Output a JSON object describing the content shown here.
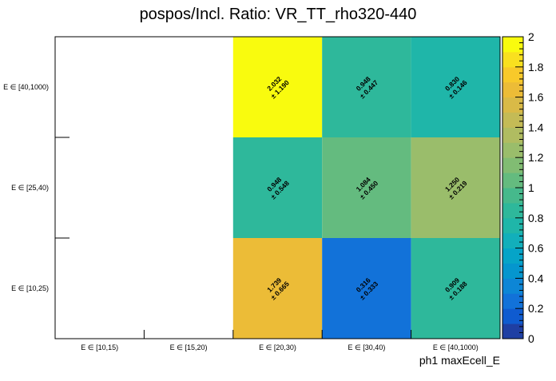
{
  "chart_data": {
    "type": "heatmap",
    "title": "pospos/Incl. Ratio: VR_TT_rho320-440",
    "xlabel": "ph1 maxEcell_E",
    "ylabel": "",
    "x_categories": [
      "E ∈ [10,15)",
      "E ∈ [15,20)",
      "E ∈ [20,30)",
      "E ∈ [30,40)",
      "E ∈ [40,1000)"
    ],
    "y_categories": [
      "E ∈ [10,25)",
      "E ∈ [25,40)",
      "E ∈ [40,1000)"
    ],
    "cells": [
      {
        "x": "E ∈ [20,30)",
        "y": "E ∈ [40,1000)",
        "value": "2.032",
        "error": "1.190",
        "label": "± 1.190"
      },
      {
        "x": "E ∈ [30,40)",
        "y": "E ∈ [40,1000)",
        "value": "0.948",
        "error": "0.447",
        "label": "± 0.447"
      },
      {
        "x": "E ∈ [40,1000)",
        "y": "E ∈ [40,1000)",
        "value": "0.830",
        "error": "0.146",
        "label": "± 0.146"
      },
      {
        "x": "E ∈ [20,30)",
        "y": "E ∈ [25,40)",
        "value": "0.948",
        "error": "0.548",
        "label": "± 0.548"
      },
      {
        "x": "E ∈ [30,40)",
        "y": "E ∈ [25,40)",
        "value": "1.084",
        "error": "0.450",
        "label": "± 0.450"
      },
      {
        "x": "E ∈ [40,1000)",
        "y": "E ∈ [25,40)",
        "value": "1.250",
        "error": "0.219",
        "label": "± 0.219"
      },
      {
        "x": "E ∈ [20,30)",
        "y": "E ∈ [10,25)",
        "value": "1.739",
        "error": "0.665",
        "label": "± 0.665"
      },
      {
        "x": "E ∈ [30,40)",
        "y": "E ∈ [10,25)",
        "value": "0.316",
        "error": "0.333",
        "label": "± 0.333"
      },
      {
        "x": "E ∈ [40,1000)",
        "y": "E ∈ [10,25)",
        "value": "0.909",
        "error": "0.188",
        "label": "± 0.188"
      }
    ],
    "zlim": [
      0,
      2
    ],
    "colorbar_ticks": [
      "0",
      "0.2",
      "0.4",
      "0.6",
      "0.8",
      "1",
      "1.2",
      "1.4",
      "1.6",
      "1.8",
      "2"
    ],
    "colorbar_levels": 20,
    "palette": [
      "#352a87",
      "#1f3fa3",
      "#0f5bd0",
      "#1272d9",
      "#0d86d6",
      "#0596ce",
      "#06a4c8",
      "#12afbb",
      "#1fb6a9",
      "#2eb89b",
      "#46b98c",
      "#64bb7f",
      "#81bc73",
      "#9abd6b",
      "#b0bc61",
      "#c4bb56",
      "#d9ba47",
      "#ecbc37",
      "#f8c92a",
      "#f9e01f",
      "#f9fb0e"
    ],
    "grid": false,
    "legend": "colorbar-right"
  }
}
